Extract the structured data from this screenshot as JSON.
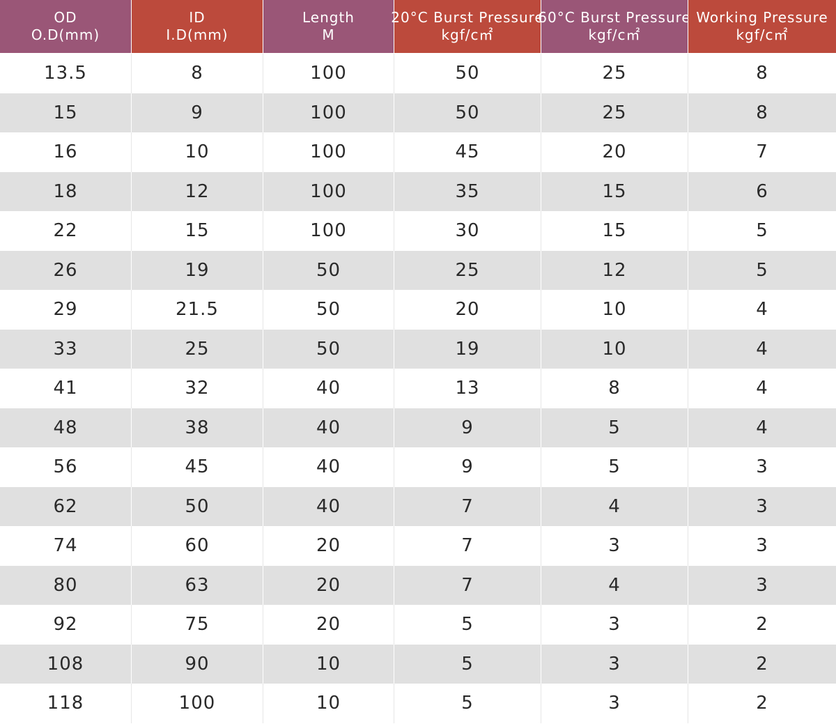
{
  "table": {
    "header_colors": {
      "purple": "#9a5677",
      "red": "#bc4a3c",
      "stripe": "#e0e0e0"
    },
    "headers": [
      {
        "line1": "OD",
        "line2": "O.D(mm)",
        "color": "purple"
      },
      {
        "line1": "ID",
        "line2": "I.D(mm)",
        "color": "red"
      },
      {
        "line1": "Length",
        "line2": "M",
        "color": "purple"
      },
      {
        "line1": "20°C Burst Pressure",
        "line2": "kgf/c㎡",
        "color": "red"
      },
      {
        "line1": "60°C Burst Pressure",
        "line2": "kgf/c㎡",
        "color": "purple"
      },
      {
        "line1": "Working Pressure",
        "line2": "kgf/c㎡",
        "color": "red"
      }
    ],
    "rows": [
      [
        "13.5",
        "8",
        "100",
        "50",
        "25",
        "8"
      ],
      [
        "15",
        "9",
        "100",
        "50",
        "25",
        "8"
      ],
      [
        "16",
        "10",
        "100",
        "45",
        "20",
        "7"
      ],
      [
        "18",
        "12",
        "100",
        "35",
        "15",
        "6"
      ],
      [
        "22",
        "15",
        "100",
        "30",
        "15",
        "5"
      ],
      [
        "26",
        "19",
        "50",
        "25",
        "12",
        "5"
      ],
      [
        "29",
        "21.5",
        "50",
        "20",
        "10",
        "4"
      ],
      [
        "33",
        "25",
        "50",
        "19",
        "10",
        "4"
      ],
      [
        "41",
        "32",
        "40",
        "13",
        "8",
        "4"
      ],
      [
        "48",
        "38",
        "40",
        "9",
        "5",
        "4"
      ],
      [
        "56",
        "45",
        "40",
        "9",
        "5",
        "3"
      ],
      [
        "62",
        "50",
        "40",
        "7",
        "4",
        "3"
      ],
      [
        "74",
        "60",
        "20",
        "7",
        "3",
        "3"
      ],
      [
        "80",
        "63",
        "20",
        "7",
        "4",
        "3"
      ],
      [
        "92",
        "75",
        "20",
        "5",
        "3",
        "2"
      ],
      [
        "108",
        "90",
        "10",
        "5",
        "3",
        "2"
      ],
      [
        "118",
        "100",
        "10",
        "5",
        "3",
        "2"
      ]
    ]
  }
}
